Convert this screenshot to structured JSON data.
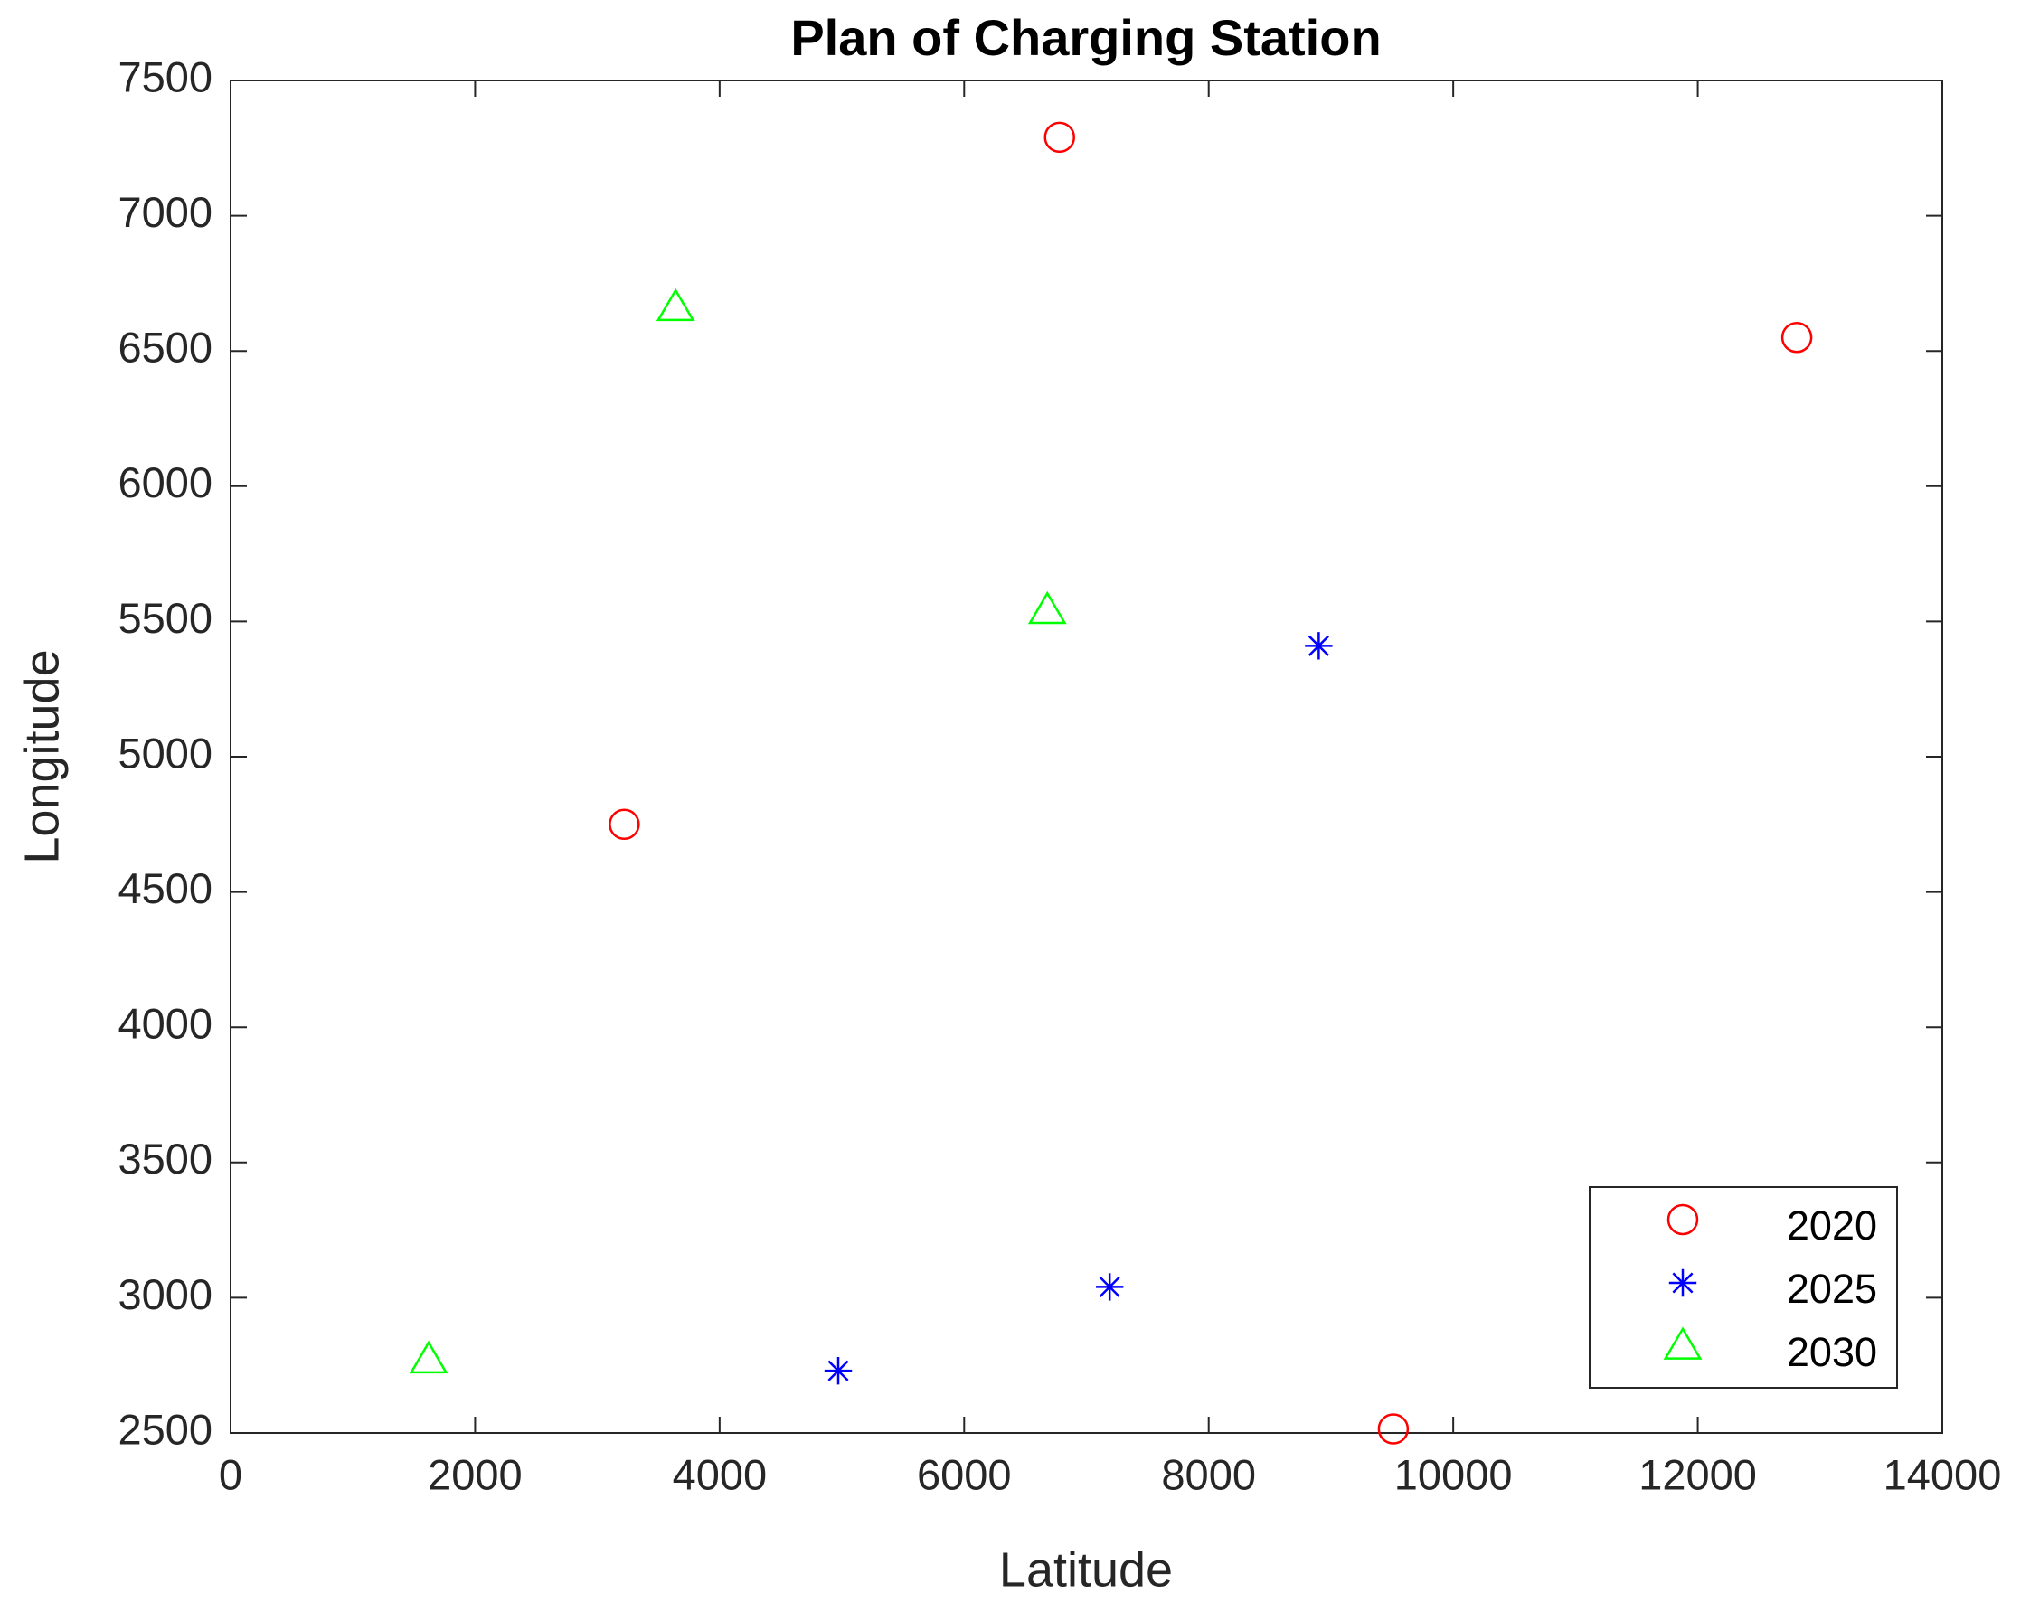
{
  "chart_data": {
    "type": "scatter",
    "title": "Plan of Charging Station",
    "x_label": "Latitude",
    "y_label": "Longitude",
    "series": [
      {
        "name": "2020",
        "color": "#ff0000",
        "marker": "circle",
        "x": [
          6780,
          12810,
          3220,
          9510
        ],
        "values": [
          7290,
          6550,
          4750,
          2515
        ]
      },
      {
        "name": "2025",
        "color": "#0000ff",
        "marker": "asterisk",
        "x": [
          8900,
          7190,
          4970
        ],
        "values": [
          5410,
          3040,
          2730
        ]
      },
      {
        "name": "2030",
        "color": "#00ff00",
        "marker": "triangle",
        "x": [
          3640,
          6680,
          1620
        ],
        "values": [
          6660,
          5540,
          2770
        ]
      }
    ],
    "xlim": [
      0,
      14000
    ],
    "xticks": [
      0,
      2000,
      4000,
      6000,
      8000,
      10000,
      12000,
      14000
    ],
    "ylim": [
      2500,
      7500
    ],
    "yticks": [
      2500,
      3000,
      3500,
      4000,
      4500,
      5000,
      5500,
      6000,
      6500,
      7000,
      7500
    ],
    "grid": false,
    "legend": "lower right"
  }
}
